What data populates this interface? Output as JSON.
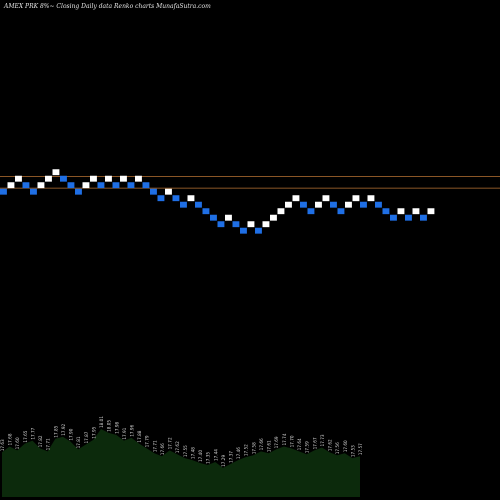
{
  "title": "AMEX  PRK 8%~  Closing Daily data  Renko  charts MunafaSutra.com",
  "colors": {
    "background": "#000000",
    "brick_up": "#ffffff",
    "brick_down": "#1f6fe5",
    "reference_line": "#b87333",
    "volume": "#0c2a0c"
  },
  "chart_data": {
    "type": "renko",
    "bricks": [
      {
        "level": 4,
        "dir": "down"
      },
      {
        "level": 5,
        "dir": "up"
      },
      {
        "level": 6,
        "dir": "up"
      },
      {
        "level": 5,
        "dir": "down"
      },
      {
        "level": 4,
        "dir": "down"
      },
      {
        "level": 5,
        "dir": "up"
      },
      {
        "level": 6,
        "dir": "up"
      },
      {
        "level": 7,
        "dir": "up"
      },
      {
        "level": 6,
        "dir": "down"
      },
      {
        "level": 5,
        "dir": "down"
      },
      {
        "level": 4,
        "dir": "down"
      },
      {
        "level": 5,
        "dir": "up"
      },
      {
        "level": 6,
        "dir": "up"
      },
      {
        "level": 5,
        "dir": "down"
      },
      {
        "level": 6,
        "dir": "up"
      },
      {
        "level": 5,
        "dir": "down"
      },
      {
        "level": 6,
        "dir": "up"
      },
      {
        "level": 5,
        "dir": "down"
      },
      {
        "level": 6,
        "dir": "up"
      },
      {
        "level": 5,
        "dir": "down"
      },
      {
        "level": 4,
        "dir": "down"
      },
      {
        "level": 3,
        "dir": "down"
      },
      {
        "level": 4,
        "dir": "up"
      },
      {
        "level": 3,
        "dir": "down"
      },
      {
        "level": 2,
        "dir": "down"
      },
      {
        "level": 3,
        "dir": "up"
      },
      {
        "level": 2,
        "dir": "down"
      },
      {
        "level": 1,
        "dir": "down"
      },
      {
        "level": 0,
        "dir": "down"
      },
      {
        "level": -1,
        "dir": "down"
      },
      {
        "level": 0,
        "dir": "up"
      },
      {
        "level": -1,
        "dir": "down"
      },
      {
        "level": -2,
        "dir": "down"
      },
      {
        "level": -1,
        "dir": "up"
      },
      {
        "level": -2,
        "dir": "down"
      },
      {
        "level": -1,
        "dir": "up"
      },
      {
        "level": 0,
        "dir": "up"
      },
      {
        "level": 1,
        "dir": "up"
      },
      {
        "level": 2,
        "dir": "up"
      },
      {
        "level": 3,
        "dir": "up"
      },
      {
        "level": 2,
        "dir": "down"
      },
      {
        "level": 1,
        "dir": "down"
      },
      {
        "level": 2,
        "dir": "up"
      },
      {
        "level": 3,
        "dir": "up"
      },
      {
        "level": 2,
        "dir": "down"
      },
      {
        "level": 1,
        "dir": "down"
      },
      {
        "level": 2,
        "dir": "up"
      },
      {
        "level": 3,
        "dir": "up"
      },
      {
        "level": 2,
        "dir": "down"
      },
      {
        "level": 3,
        "dir": "up"
      },
      {
        "level": 2,
        "dir": "down"
      },
      {
        "level": 1,
        "dir": "down"
      },
      {
        "level": 0,
        "dir": "down"
      },
      {
        "level": 1,
        "dir": "up"
      },
      {
        "level": 0,
        "dir": "down"
      },
      {
        "level": 1,
        "dir": "up"
      },
      {
        "level": 0,
        "dir": "down"
      },
      {
        "level": 1,
        "dir": "up"
      }
    ],
    "reference_levels": [
      6.4,
      4.6
    ],
    "volume": [
      {
        "value": 46,
        "label": "17.63"
      },
      {
        "value": 52,
        "label": "17.68"
      },
      {
        "value": 48,
        "label": "17.60"
      },
      {
        "value": 55,
        "label": "17.65"
      },
      {
        "value": 58,
        "label": "17.77"
      },
      {
        "value": 50,
        "label": "17.82"
      },
      {
        "value": 47,
        "label": "17.71"
      },
      {
        "value": 60,
        "label": "17.85"
      },
      {
        "value": 62,
        "label": "17.92"
      },
      {
        "value": 57,
        "label": "17.90"
      },
      {
        "value": 49,
        "label": "17.81"
      },
      {
        "value": 54,
        "label": "17.87"
      },
      {
        "value": 59,
        "label": "17.95"
      },
      {
        "value": 70,
        "label": "18.01"
      },
      {
        "value": 66,
        "label": "18.05"
      },
      {
        "value": 64,
        "label": "17.98"
      },
      {
        "value": 58,
        "label": "17.91"
      },
      {
        "value": 61,
        "label": "17.96"
      },
      {
        "value": 55,
        "label": "17.88"
      },
      {
        "value": 50,
        "label": "17.79"
      },
      {
        "value": 45,
        "label": "17.71"
      },
      {
        "value": 42,
        "label": "17.66"
      },
      {
        "value": 48,
        "label": "17.72"
      },
      {
        "value": 44,
        "label": "17.62"
      },
      {
        "value": 40,
        "label": "17.55"
      },
      {
        "value": 38,
        "label": "17.48"
      },
      {
        "value": 35,
        "label": "17.40"
      },
      {
        "value": 33,
        "label": "17.35"
      },
      {
        "value": 36,
        "label": "17.44"
      },
      {
        "value": 30,
        "label": "17.29"
      },
      {
        "value": 34,
        "label": "17.37"
      },
      {
        "value": 38,
        "label": "17.46"
      },
      {
        "value": 41,
        "label": "17.52"
      },
      {
        "value": 43,
        "label": "17.58"
      },
      {
        "value": 47,
        "label": "17.66"
      },
      {
        "value": 45,
        "label": "17.61"
      },
      {
        "value": 49,
        "label": "17.69"
      },
      {
        "value": 52,
        "label": "17.74"
      },
      {
        "value": 50,
        "label": "17.70"
      },
      {
        "value": 47,
        "label": "17.64"
      },
      {
        "value": 44,
        "label": "17.59"
      },
      {
        "value": 48,
        "label": "17.67"
      },
      {
        "value": 51,
        "label": "17.73"
      },
      {
        "value": 46,
        "label": "17.62"
      },
      {
        "value": 43,
        "label": "17.56"
      },
      {
        "value": 45,
        "label": "17.60"
      },
      {
        "value": 40,
        "label": "17.53"
      },
      {
        "value": 42,
        "label": "17.57"
      }
    ]
  }
}
